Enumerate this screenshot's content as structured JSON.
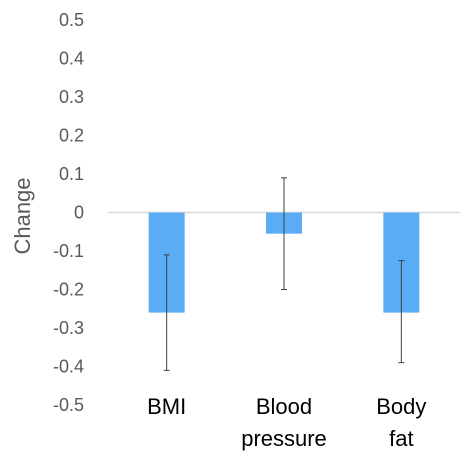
{
  "chart_data": {
    "type": "bar",
    "ylabel": "Change",
    "xlabel": "",
    "title": "",
    "ylim": [
      -0.5,
      0.5
    ],
    "yticks": [
      "0.5",
      "0.4",
      "0.3",
      "0.2",
      "0.1",
      "0",
      "-0.1",
      "-0.2",
      "-0.3",
      "-0.4",
      "-0.5"
    ],
    "ytick_values": [
      0.5,
      0.4,
      0.3,
      0.2,
      0.1,
      0,
      -0.1,
      -0.2,
      -0.3,
      -0.4,
      -0.5
    ],
    "categories": [
      {
        "lines": [
          "BMI"
        ]
      },
      {
        "lines": [
          "Blood",
          "pressure"
        ]
      },
      {
        "lines": [
          "Body",
          "fat"
        ]
      }
    ],
    "values": [
      -0.26,
      -0.055,
      -0.26
    ],
    "error_low": [
      -0.41,
      -0.2,
      -0.39
    ],
    "error_high": [
      -0.11,
      0.09,
      -0.125
    ],
    "bar_color": "#5AADF5",
    "error_color": "#404040",
    "zero_line_color": "#D9D9D9",
    "grid": false,
    "legend": "none"
  }
}
